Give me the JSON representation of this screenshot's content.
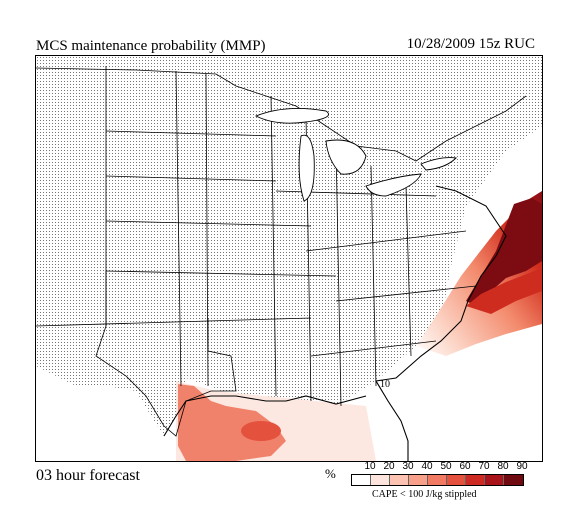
{
  "header": {
    "title": "MCS maintenance probability (MMP)",
    "valid_info": "10/28/2009  15z  RUC"
  },
  "footer": {
    "forecast_label": "03 hour forecast"
  },
  "legend": {
    "unit": "%",
    "ticks": [
      "10",
      "20",
      "30",
      "40",
      "50",
      "60",
      "70",
      "80",
      "90"
    ],
    "colors": [
      "#ffffff",
      "#fde4dc",
      "#fcc3b2",
      "#f9a08a",
      "#f27a62",
      "#e4513d",
      "#cc2a22",
      "#a8141a",
      "#6e0a10"
    ],
    "note": "CAPE < 100 J/kg stippled"
  },
  "map": {
    "contour_label": "10",
    "stipple_color": "#555555",
    "border_color": "#000000"
  }
}
